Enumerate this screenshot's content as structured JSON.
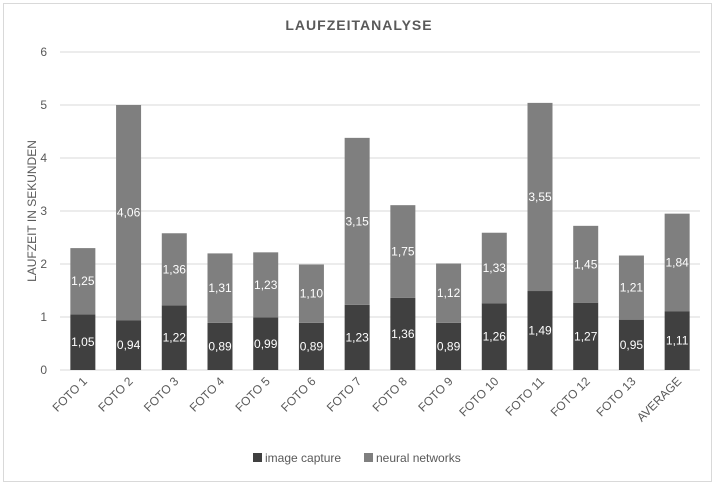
{
  "chart_data": {
    "type": "bar",
    "stacked": true,
    "title": "LAUFZEITANALYSE",
    "xlabel": "",
    "ylabel": "LAUFZEIT IN SEKUNDEN",
    "ylim": [
      0,
      6
    ],
    "yticks": [
      "0",
      "1",
      "2",
      "3",
      "4",
      "5",
      "6"
    ],
    "grid": true,
    "legend_position": "bottom",
    "categories": [
      "FOTO 1",
      "FOTO 2",
      "FOTO 3",
      "FOTO 4",
      "FOTO 5",
      "FOTO 6",
      "FOTO 7",
      "FOTO 8",
      "FOTO 9",
      "FOTO 10",
      "FOTO 11",
      "FOTO 12",
      "FOTO 13",
      "AVERAGE"
    ],
    "series": [
      {
        "name": "image capture",
        "color": "#404040",
        "values": [
          1.05,
          0.94,
          1.22,
          0.89,
          0.99,
          0.89,
          1.23,
          1.36,
          0.89,
          1.26,
          1.49,
          1.27,
          0.95,
          1.11
        ],
        "labels": [
          "1,05",
          "0,94",
          "1,22",
          "0,89",
          "0,99",
          "0,89",
          "1,23",
          "1,36",
          "0,89",
          "1,26",
          "1,49",
          "1,27",
          "0,95",
          "1,11"
        ]
      },
      {
        "name": "neural networks",
        "color": "#7f7f7f",
        "values": [
          1.25,
          4.06,
          1.36,
          1.31,
          1.23,
          1.1,
          3.15,
          1.75,
          1.12,
          1.33,
          3.55,
          1.45,
          1.21,
          1.84
        ],
        "labels": [
          "1,25",
          "4,06",
          "1,36",
          "1,31",
          "1,23",
          "1,10",
          "3,15",
          "1,75",
          "1,12",
          "1,33",
          "3,55",
          "1,45",
          "1,21",
          "1,84"
        ]
      }
    ]
  }
}
